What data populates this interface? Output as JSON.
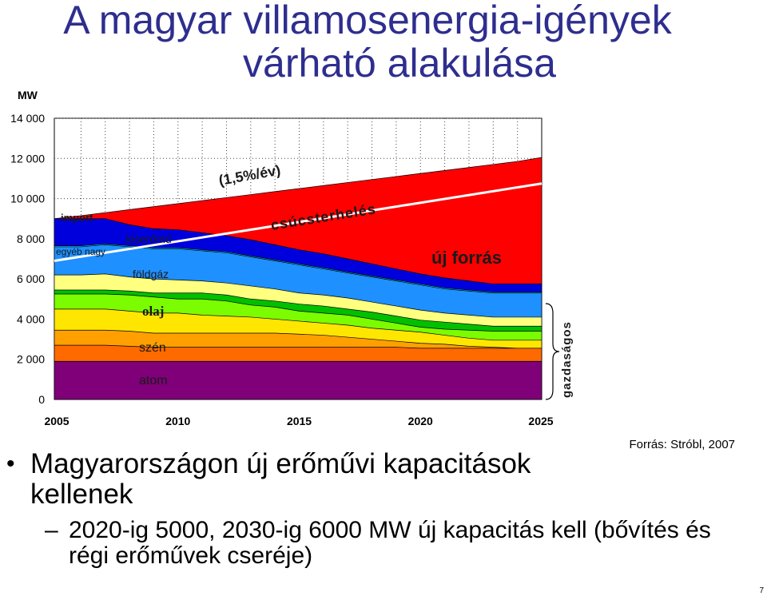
{
  "slide": {
    "title_line1": "A magyar villamosenergia-igények",
    "title_line2": "várható alakulása",
    "source": "Forrás: Stróbl, 2007",
    "bullet": "Magyarországon új erőművi kapacitások kellenek",
    "sub_bullet": "2020-ig 5000, 2030-ig 6000 MW új kapacitás kell (bővítés és régi erőművek cseréje)",
    "page_number": "7"
  },
  "chart_data": {
    "type": "area",
    "ylabel": "MW",
    "ylim": [
      0,
      14000
    ],
    "y_ticks": [
      "0",
      "2 000",
      "4 000",
      "6 000",
      "8 000",
      "10 000",
      "12 000",
      "14 000"
    ],
    "x_ticks": [
      "2005",
      "2010",
      "2015",
      "2020",
      "2025"
    ],
    "x": [
      2004.9,
      2006,
      2007,
      2008,
      2009,
      2010,
      2011,
      2012,
      2013,
      2014,
      2015,
      2016,
      2017,
      2018,
      2019,
      2020,
      2021,
      2022,
      2023,
      2024,
      2025
    ],
    "series": [
      {
        "name": "atom",
        "color": "#7f0078",
        "values": [
          1900,
          1900,
          1900,
          1900,
          1900,
          1900,
          1900,
          1900,
          1900,
          1900,
          1900,
          1900,
          1900,
          1900,
          1900,
          1900,
          1900,
          1900,
          1900,
          1900,
          1900
        ]
      },
      {
        "name": "szén",
        "color": "#ff6a00",
        "values": [
          2700,
          2700,
          2700,
          2650,
          2600,
          2600,
          2600,
          2600,
          2600,
          2600,
          2600,
          2600,
          2600,
          2600,
          2600,
          2550,
          2550,
          2550,
          2550,
          2550,
          2550
        ]
      },
      {
        "name": "",
        "color": "#ffa000",
        "values": [
          3450,
          3450,
          3450,
          3400,
          3300,
          3300,
          3300,
          3300,
          3300,
          3300,
          3250,
          3200,
          3100,
          3000,
          2900,
          2800,
          2750,
          2650,
          2600,
          2550,
          2550
        ]
      },
      {
        "name": "olaj",
        "color": "#ffe600",
        "values": [
          4500,
          4500,
          4500,
          4400,
          4300,
          4300,
          4200,
          4150,
          4100,
          4000,
          3900,
          3800,
          3700,
          3550,
          3450,
          3350,
          3200,
          3050,
          2950,
          2950,
          2950
        ]
      },
      {
        "name": "",
        "color": "#7cfc00",
        "values": [
          5250,
          5250,
          5250,
          5200,
          5100,
          5000,
          5000,
          4900,
          4700,
          4600,
          4400,
          4300,
          4200,
          4000,
          3800,
          3600,
          3500,
          3450,
          3400,
          3400,
          3400
        ]
      },
      {
        "name": "",
        "color": "#00c000",
        "values": [
          5450,
          5450,
          5450,
          5400,
          5300,
          5300,
          5300,
          5200,
          5000,
          4900,
          4750,
          4650,
          4500,
          4350,
          4150,
          3950,
          3850,
          3750,
          3650,
          3650,
          3650
        ]
      },
      {
        "name": "földgáz",
        "color": "#ffff80",
        "values": [
          6200,
          6200,
          6250,
          6100,
          6000,
          5950,
          5900,
          5800,
          5650,
          5500,
          5300,
          5200,
          5050,
          4850,
          4650,
          4450,
          4300,
          4200,
          4100,
          4100,
          4100
        ]
      },
      {
        "name": "egyéb nagy",
        "color": "#1e90ff",
        "values": [
          7600,
          7600,
          7700,
          7600,
          7500,
          7500,
          7400,
          7300,
          7100,
          6900,
          6700,
          6500,
          6300,
          6100,
          5900,
          5700,
          5500,
          5400,
          5300,
          5300,
          5300
        ]
      },
      {
        "name": "kiserőmű",
        "color": "#00d5ff",
        "values": [
          7650,
          7650,
          7750,
          7650,
          7550,
          7550,
          7450,
          7350,
          7150,
          6950,
          6750,
          6550,
          6350,
          6150,
          5950,
          5750,
          5550,
          5450,
          5350,
          5350,
          5350
        ]
      },
      {
        "name": "import",
        "color": "#0000dd",
        "values": [
          9000,
          9000,
          9000,
          8700,
          8500,
          8450,
          8300,
          8150,
          7950,
          7700,
          7450,
          7250,
          7000,
          6750,
          6500,
          6250,
          6050,
          5900,
          5750,
          5750,
          5750
        ]
      },
      {
        "name": "új forrás",
        "color": "#ff0000",
        "values": [
          9000,
          9150,
          9300,
          9450,
          9600,
          9750,
          9900,
          10050,
          10200,
          10350,
          10500,
          10650,
          10800,
          10950,
          11100,
          11250,
          11400,
          11550,
          11700,
          11850,
          12050
        ]
      }
    ],
    "annotations": {
      "trend_label": "(1,5%/év)",
      "peak_label": "csúcsterhelés",
      "peak_line": {
        "x": [
          2004.9,
          2025
        ],
        "y": [
          6900,
          10750
        ],
        "color": "#ffffff"
      },
      "brace_label": "gazdaságos"
    },
    "grid": true
  }
}
